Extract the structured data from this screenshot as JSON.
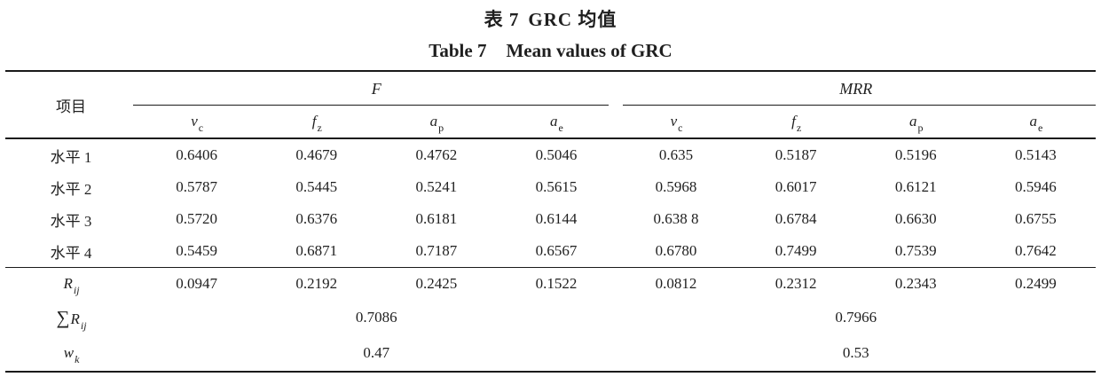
{
  "page": {
    "title_cn_label": "表 7",
    "title_cn_text": "GRC 均值",
    "title_en_label": "Table 7",
    "title_en_text": "Mean values of GRC"
  },
  "table": {
    "item_header": "项目",
    "group_f": "F",
    "group_mrr": "MRR",
    "subheads": [
      {
        "base": "v",
        "sub": "c"
      },
      {
        "base": "f",
        "sub": "z"
      },
      {
        "base": "a",
        "sub": "p"
      },
      {
        "base": "a",
        "sub": "e"
      },
      {
        "base": "v",
        "sub": "c"
      },
      {
        "base": "f",
        "sub": "z"
      },
      {
        "base": "a",
        "sub": "p"
      },
      {
        "base": "a",
        "sub": "e"
      }
    ],
    "rows": [
      {
        "label": "水平 1",
        "values": [
          "0.6406",
          "0.4679",
          "0.4762",
          "0.5046",
          "0.635",
          "0.5187",
          "0.5196",
          "0.5143"
        ]
      },
      {
        "label": "水平 2",
        "values": [
          "0.5787",
          "0.5445",
          "0.5241",
          "0.5615",
          "0.5968",
          "0.6017",
          "0.6121",
          "0.5946"
        ]
      },
      {
        "label": "水平 3",
        "values": [
          "0.5720",
          "0.6376",
          "0.6181",
          "0.6144",
          "0.638 8",
          "0.6784",
          "0.6630",
          "0.6755"
        ]
      },
      {
        "label": "水平 4",
        "values": [
          "0.5459",
          "0.6871",
          "0.7187",
          "0.6567",
          "0.6780",
          "0.7499",
          "0.7539",
          "0.7642"
        ]
      }
    ],
    "rij": {
      "base": "R",
      "sub": "ij",
      "values": [
        "0.0947",
        "0.2192",
        "0.2425",
        "0.1522",
        "0.0812",
        "0.2312",
        "0.2343",
        "0.2499"
      ]
    },
    "sum": {
      "sigma": "∑",
      "base": "R",
      "sub": "ij",
      "f": "0.7086",
      "mrr": "0.7966"
    },
    "wk": {
      "base": "w",
      "sub": "k",
      "f": "0.47",
      "mrr": "0.53"
    }
  }
}
